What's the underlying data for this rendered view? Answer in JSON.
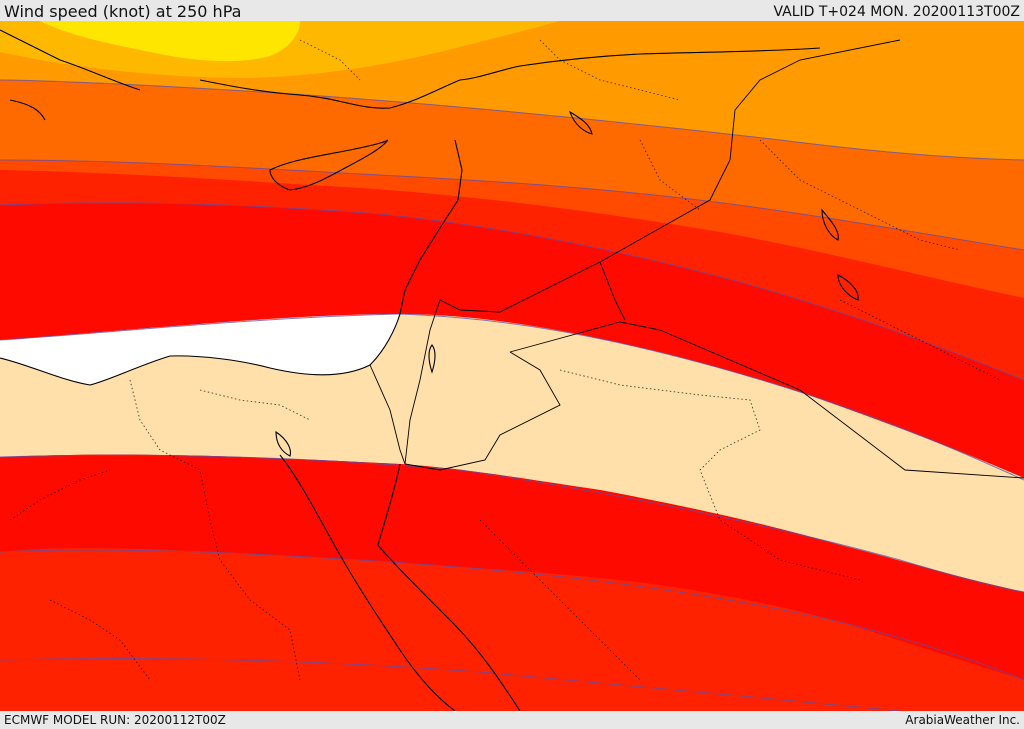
{
  "header": {
    "title": "Wind speed (knot) at 250 hPa",
    "valid_time": "VALID T+024 MON. 20200113T00Z"
  },
  "footer": {
    "model_run": "ECMWF MODEL RUN: 20200112T00Z",
    "credit": "ArabiaWeather Inc."
  },
  "map": {
    "colors": {
      "band_yellow": "#ffe600",
      "band_light_orange": "#ffb800",
      "band_orange": "#ff9a00",
      "band_dark_orange": "#ff6a00",
      "band_red_orange": "#ff4a00",
      "band_red": "#ff0a00",
      "band_scarlet": "#ff2200",
      "band_pale": "#ffdfaa",
      "band_white": "#ffffff",
      "contour_line": "#5a4fb0",
      "coastline": "#000000",
      "border": "#000000"
    }
  }
}
